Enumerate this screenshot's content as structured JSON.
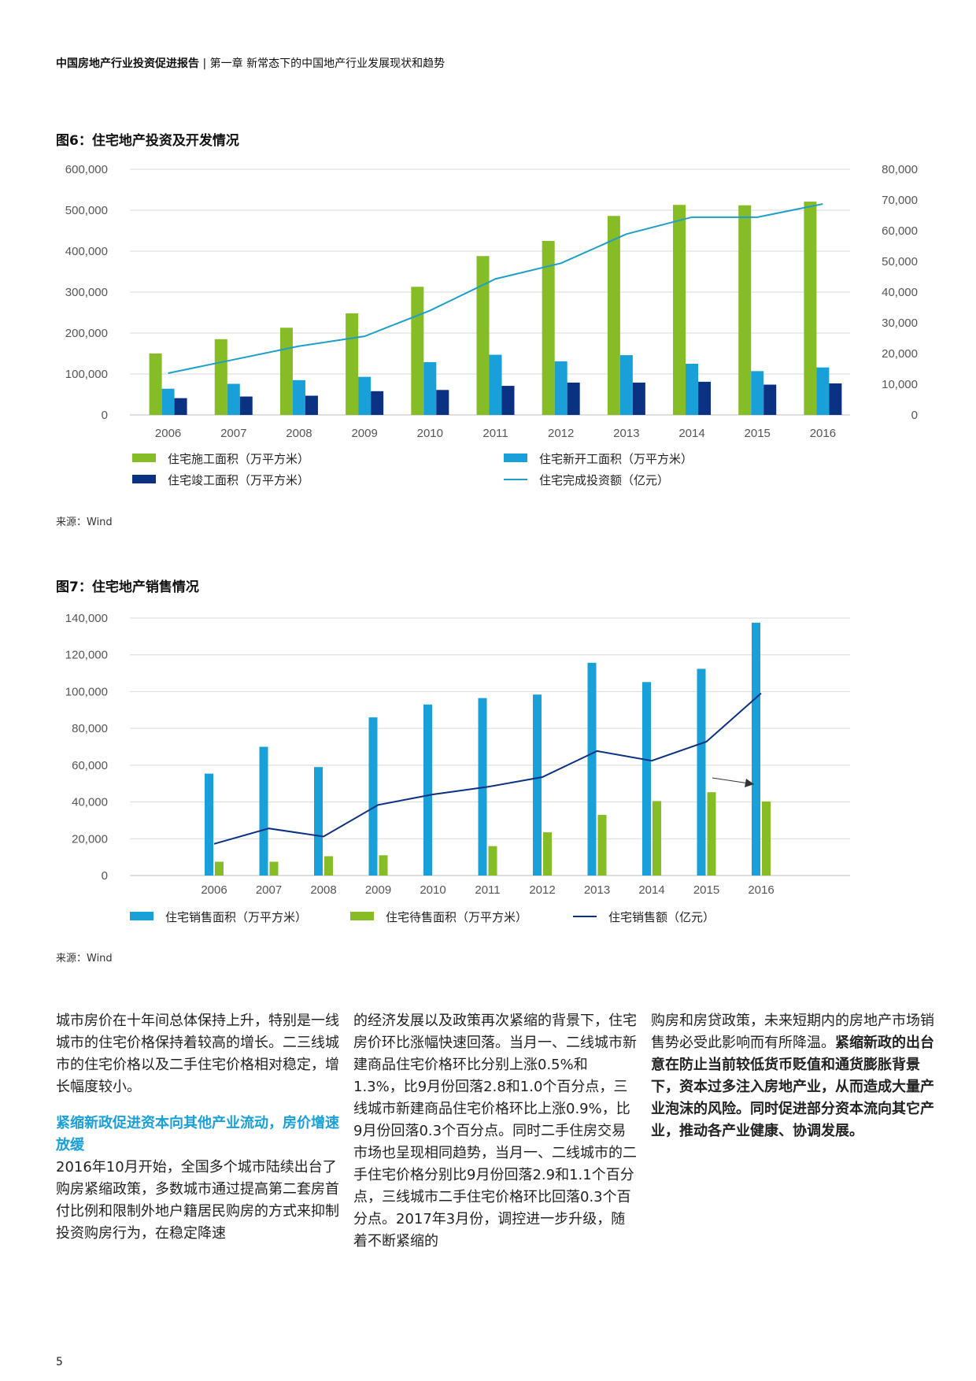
{
  "header": {
    "report_title": "中国房地产行业投资促进报告",
    "separator": " | ",
    "chapter": "第一章 新常态下的中国地产行业发展现状和趋势"
  },
  "colors": {
    "green": "#86bc25",
    "blue": "#1aa0d8",
    "navy": "#0b3183",
    "line_blue": "#1e9fc8",
    "grid": "#d9d9d9"
  },
  "figure6": {
    "title": "图6：住宅地产投资及开发情况",
    "source": "来源：Wind"
  },
  "figure7": {
    "title": "图7：住宅地产销售情况",
    "source": "来源：Wind"
  },
  "chart_data": [
    {
      "type": "bar",
      "id": "fig6",
      "title": "图6：住宅地产投资及开发情况",
      "categories": [
        "2006",
        "2007",
        "2008",
        "2009",
        "2010",
        "2011",
        "2012",
        "2013",
        "2014",
        "2015",
        "2016"
      ],
      "y_left": {
        "min": 0,
        "max": 600000,
        "ticks": [
          "600,000",
          "500,000",
          "400,000",
          "300,000",
          "200,000",
          "100,000",
          "0"
        ],
        "tick_values": [
          600000,
          500000,
          400000,
          300000,
          200000,
          100000,
          0
        ]
      },
      "y_right": {
        "min": 0,
        "max": 80000,
        "ticks": [
          "80,000",
          "70,000",
          "60,000",
          "50,000",
          "40,000",
          "30,000",
          "20,000",
          "10,000",
          "0"
        ],
        "tick_values": [
          80000,
          70000,
          60000,
          50000,
          40000,
          30000,
          20000,
          10000,
          0
        ]
      },
      "series": [
        {
          "name": "住宅施工面积（万平方米）",
          "kind": "bar",
          "axis": "left",
          "color": "#86bc25",
          "values": [
            150000,
            185000,
            213000,
            248000,
            313000,
            388000,
            425000,
            486000,
            513000,
            512000,
            521000
          ]
        },
        {
          "name": "住宅新开工面积（万平方米）",
          "kind": "bar",
          "axis": "left",
          "color": "#1aa0d8",
          "values": [
            64000,
            76000,
            85000,
            93000,
            129000,
            147000,
            131000,
            146000,
            125000,
            107000,
            116000
          ]
        },
        {
          "name": "住宅竣工面积（万平方米）",
          "kind": "bar",
          "axis": "left",
          "color": "#0b3183",
          "values": [
            41000,
            45000,
            47000,
            58000,
            61000,
            71000,
            79000,
            79000,
            81000,
            74000,
            77000
          ]
        },
        {
          "name": "住宅完成投资额（亿元）",
          "kind": "line",
          "axis": "right",
          "color": "#1e9fc8",
          "values": [
            13600,
            18000,
            22400,
            25600,
            34000,
            44300,
            49400,
            58900,
            64400,
            64400,
            68700
          ]
        }
      ]
    },
    {
      "type": "bar",
      "id": "fig7",
      "title": "图7：住宅地产销售情况",
      "categories": [
        "2006",
        "2007",
        "2008",
        "2009",
        "2010",
        "2011",
        "2012",
        "2013",
        "2014",
        "2015",
        "2016"
      ],
      "y_left": {
        "min": 0,
        "max": 140000,
        "ticks": [
          "140,000",
          "120,000",
          "100,000",
          "80,000",
          "60,000",
          "40,000",
          "20,000",
          "0"
        ],
        "tick_values": [
          140000,
          120000,
          100000,
          80000,
          60000,
          40000,
          20000,
          0
        ]
      },
      "series": [
        {
          "name": "住宅销售面积（万平方米）",
          "kind": "bar",
          "color": "#1aa0d8",
          "values": [
            55400,
            70000,
            59000,
            86000,
            93000,
            96500,
            98400,
            115700,
            105200,
            112400,
            137500
          ]
        },
        {
          "name": "住宅待售面积（万平方米）",
          "kind": "bar",
          "color": "#86bc25",
          "values": [
            7500,
            7500,
            10500,
            11000,
            0,
            16000,
            23500,
            33000,
            40500,
            45300,
            40300
          ]
        },
        {
          "name": "住宅销售额（亿元）",
          "kind": "line",
          "color": "#0b3183",
          "values": [
            17200,
            25600,
            21200,
            38400,
            44100,
            48200,
            53500,
            67700,
            62400,
            72800,
            99100
          ]
        }
      ],
      "annotation": "arrow pointing to 2016 unsold area"
    }
  ],
  "body": {
    "col1_p1": "城市房价在十年间总体保持上升，特别是一线城市的住宅价格保持着较高的增长。二三线城市的住宅价格以及二手住宅价格相对稳定，增长幅度较小。",
    "col1_subheading": "紧缩新政促进资本向其他产业流动，房价增速放缓",
    "col1_p2": "2016年10月开始，全国多个城市陆续出台了购房紧缩政策，多数城市通过提高第二套房首付比例和限制外地户籍居民购房的方式来抑制投资购房行为，在稳定降速",
    "col2_p1": "的经济发展以及政策再次紧缩的背景下，住宅房价环比涨幅快速回落。当月一、二线城市新建商品住宅价格环比分别上涨0.5%和1.3%，比9月份回落2.8和1.0个百分点，三线城市新建商品住宅价格环比上涨0.9%，比9月份回落0.3个百分点。同时二手住房交易市场也呈现相同趋势，当月一、二线城市的二手住宅价格分别比9月份回落2.9和1.1个百分点，三线城市二手住宅价格环比回落0.3个百分点。2017年3月份，调控进一步升级，随着不断紧缩的",
    "col3_p1_normal": "购房和房贷政策，未来短期内的房地产市场销售势必受此影响而有所降温。",
    "col3_p1_bold": "紧缩新政的出台意在防止当前较低货币贬值和通货膨胀背景下，资本过多注入房地产业，从而造成大量产业泡沫的风险。同时促进部分资本流向其它产业，推动各产业健康、协调发展。"
  },
  "page_number": "5"
}
